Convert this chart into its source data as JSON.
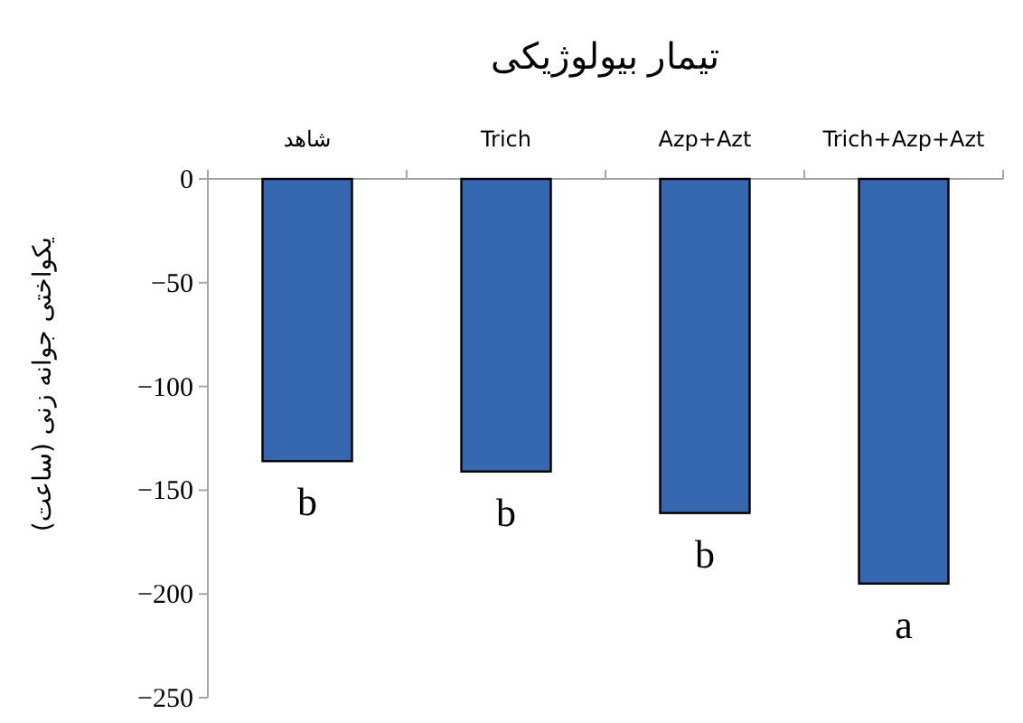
{
  "chart_data": {
    "type": "bar",
    "title": "تیمار بیولوژیکی",
    "ylabel": "یکواختی جوانه زنی (ساعت)",
    "categories": [
      "شاهد",
      "Trich",
      "Azp+Azt",
      "Trich+Azp+Azt"
    ],
    "values": [
      -136,
      -141,
      -161,
      -195
    ],
    "color": "#3568b0",
    "ylim": [
      -250,
      0
    ],
    "yticks": [
      -250,
      -200,
      -150,
      -100,
      -50,
      0
    ],
    "grid": false,
    "annotations": [
      {
        "text": "b",
        "x": "شاهد",
        "y": -136
      },
      {
        "text": "b",
        "x": "Trich",
        "y": -141
      },
      {
        "text": "b",
        "x": "Azp+Azt",
        "y": -161
      },
      {
        "text": "a",
        "x": "Trich+Azp+Azt",
        "y": -195
      }
    ]
  }
}
